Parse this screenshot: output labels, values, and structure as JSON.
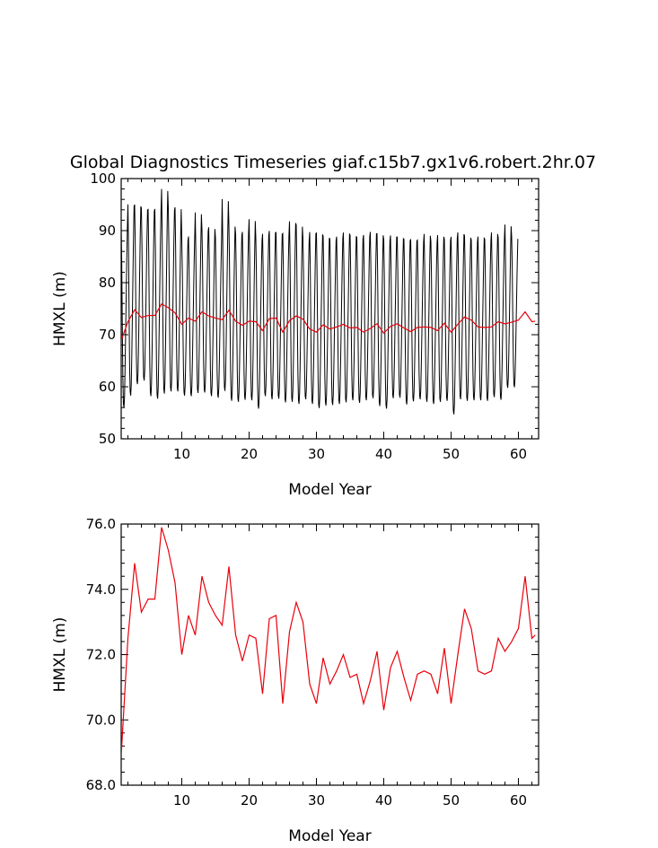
{
  "figure_title": "Global Diagnostics Timeseries giaf.c15b7.gx1v6.robert.2hr.07",
  "colors": {
    "monthly": "#000000",
    "annual": "#e8000b",
    "axes": "#000000"
  },
  "chart_data": [
    {
      "type": "line",
      "xlabel": "Model Year",
      "ylabel": "HMXL (m)",
      "xlim": [
        1,
        63
      ],
      "ylim": [
        50,
        100
      ],
      "xticks": [
        10,
        20,
        30,
        40,
        50,
        60
      ],
      "yticks": [
        50,
        60,
        70,
        80,
        90,
        100
      ],
      "xtick_labels": [
        "10",
        "20",
        "30",
        "40",
        "50",
        "60"
      ],
      "ytick_labels": [
        "50",
        "60",
        "70",
        "80",
        "90",
        "100"
      ],
      "grid": false,
      "series": [
        {
          "kind": "monthly",
          "color": "#000000",
          "x_start": 1.0,
          "step_per_point": 0.0833,
          "annual_max": [
            91.5,
            95.8,
            95.7,
            95.0,
            94.8,
            94.9,
            98.8,
            95.0,
            95.2,
            89.0,
            89.5,
            94.2,
            90.8,
            91.3,
            89.3,
            96.8,
            91.8,
            90.0,
            90.4,
            92.9,
            89.0,
            90.0,
            90.6,
            90.3,
            90.1,
            92.5,
            91.8,
            89.0,
            90.4,
            90.3,
            89.6,
            89.0,
            89.5,
            90.3,
            89.8,
            89.4,
            89.8,
            90.4,
            90.1,
            89.0,
            89.7,
            89.4,
            89.0,
            89.0,
            88.8,
            90.0,
            88.6,
            89.8,
            89.0,
            89.5,
            90.3,
            89.6,
            88.8,
            89.5,
            89.0,
            90.3,
            89.3,
            91.8,
            89.3
          ],
          "annual_min": [
            56.0,
            58.3,
            60.5,
            61.2,
            58.2,
            57.7,
            58.7,
            59.1,
            59.1,
            58.3,
            58.2,
            58.8,
            58.9,
            58.2,
            57.9,
            59.2,
            57.3,
            57.1,
            57.5,
            57.4,
            55.8,
            58.2,
            57.6,
            57.7,
            57.0,
            57.1,
            56.7,
            57.6,
            56.7,
            55.9,
            56.4,
            56.5,
            56.7,
            57.0,
            57.4,
            56.9,
            57.4,
            57.8,
            56.3,
            55.8,
            57.8,
            57.9,
            56.6,
            57.2,
            57.6,
            57.1,
            56.7,
            57.1,
            57.3,
            54.7,
            57.6,
            57.3,
            57.4,
            57.4,
            57.3,
            58.0,
            57.5,
            59.8,
            59.9
          ]
        },
        {
          "kind": "annual",
          "color": "#e8000b",
          "x": [
            1,
            2,
            3,
            4,
            5,
            6,
            7,
            8,
            9,
            10,
            11,
            12,
            13,
            14,
            15,
            16,
            17,
            18,
            19,
            20,
            21,
            22,
            23,
            24,
            25,
            26,
            27,
            28,
            29,
            30,
            31,
            32,
            33,
            34,
            35,
            36,
            37,
            38,
            39,
            40,
            41,
            42,
            43,
            44,
            45,
            46,
            47,
            48,
            49,
            50,
            51,
            52,
            53,
            54,
            55,
            56,
            57,
            58,
            59,
            60,
            61,
            62,
            62.5
          ],
          "values": [
            68.9,
            72.5,
            74.8,
            73.3,
            73.7,
            73.7,
            75.9,
            75.2,
            74.2,
            72.0,
            73.2,
            72.6,
            74.4,
            73.6,
            73.2,
            72.9,
            74.7,
            72.6,
            71.8,
            72.6,
            72.5,
            70.8,
            73.1,
            73.2,
            70.5,
            72.7,
            73.6,
            73.0,
            71.1,
            70.5,
            71.9,
            71.1,
            71.5,
            72.0,
            71.3,
            71.4,
            70.5,
            71.2,
            72.1,
            70.3,
            71.6,
            72.1,
            71.3,
            70.6,
            71.4,
            71.5,
            71.4,
            70.8,
            72.2,
            70.5,
            72.0,
            73.4,
            72.8,
            71.5,
            71.4,
            71.5,
            72.5,
            72.1,
            72.4,
            72.8,
            74.4,
            72.5,
            72.6
          ]
        }
      ]
    },
    {
      "type": "line",
      "xlabel": "Model Year",
      "ylabel": "HMXL (m)",
      "xlim": [
        1,
        63
      ],
      "ylim": [
        68,
        76
      ],
      "xticks": [
        10,
        20,
        30,
        40,
        50,
        60
      ],
      "yticks": [
        68,
        70,
        72,
        74,
        76
      ],
      "xtick_labels": [
        "10",
        "20",
        "30",
        "40",
        "50",
        "60"
      ],
      "ytick_labels": [
        "68.0",
        "70.0",
        "72.0",
        "74.0",
        "76.0"
      ],
      "grid": false,
      "series": [
        {
          "kind": "annual",
          "color": "#e8000b",
          "x": [
            1,
            2,
            3,
            4,
            5,
            6,
            7,
            8,
            9,
            10,
            11,
            12,
            13,
            14,
            15,
            16,
            17,
            18,
            19,
            20,
            21,
            22,
            23,
            24,
            25,
            26,
            27,
            28,
            29,
            30,
            31,
            32,
            33,
            34,
            35,
            36,
            37,
            38,
            39,
            40,
            41,
            42,
            43,
            44,
            45,
            46,
            47,
            48,
            49,
            50,
            51,
            52,
            53,
            54,
            55,
            56,
            57,
            58,
            59,
            60,
            61,
            62,
            62.5
          ],
          "values": [
            68.9,
            72.5,
            74.8,
            73.3,
            73.7,
            73.7,
            75.9,
            75.2,
            74.2,
            72.0,
            73.2,
            72.6,
            74.4,
            73.6,
            73.2,
            72.9,
            74.7,
            72.6,
            71.8,
            72.6,
            72.5,
            70.8,
            73.1,
            73.2,
            70.5,
            72.7,
            73.6,
            73.0,
            71.1,
            70.5,
            71.9,
            71.1,
            71.5,
            72.0,
            71.3,
            71.4,
            70.5,
            71.2,
            72.1,
            70.3,
            71.6,
            72.1,
            71.3,
            70.6,
            71.4,
            71.5,
            71.4,
            70.8,
            72.2,
            70.5,
            72.0,
            73.4,
            72.8,
            71.5,
            71.4,
            71.5,
            72.5,
            72.1,
            72.4,
            72.8,
            74.4,
            72.5,
            72.6
          ]
        }
      ]
    }
  ]
}
